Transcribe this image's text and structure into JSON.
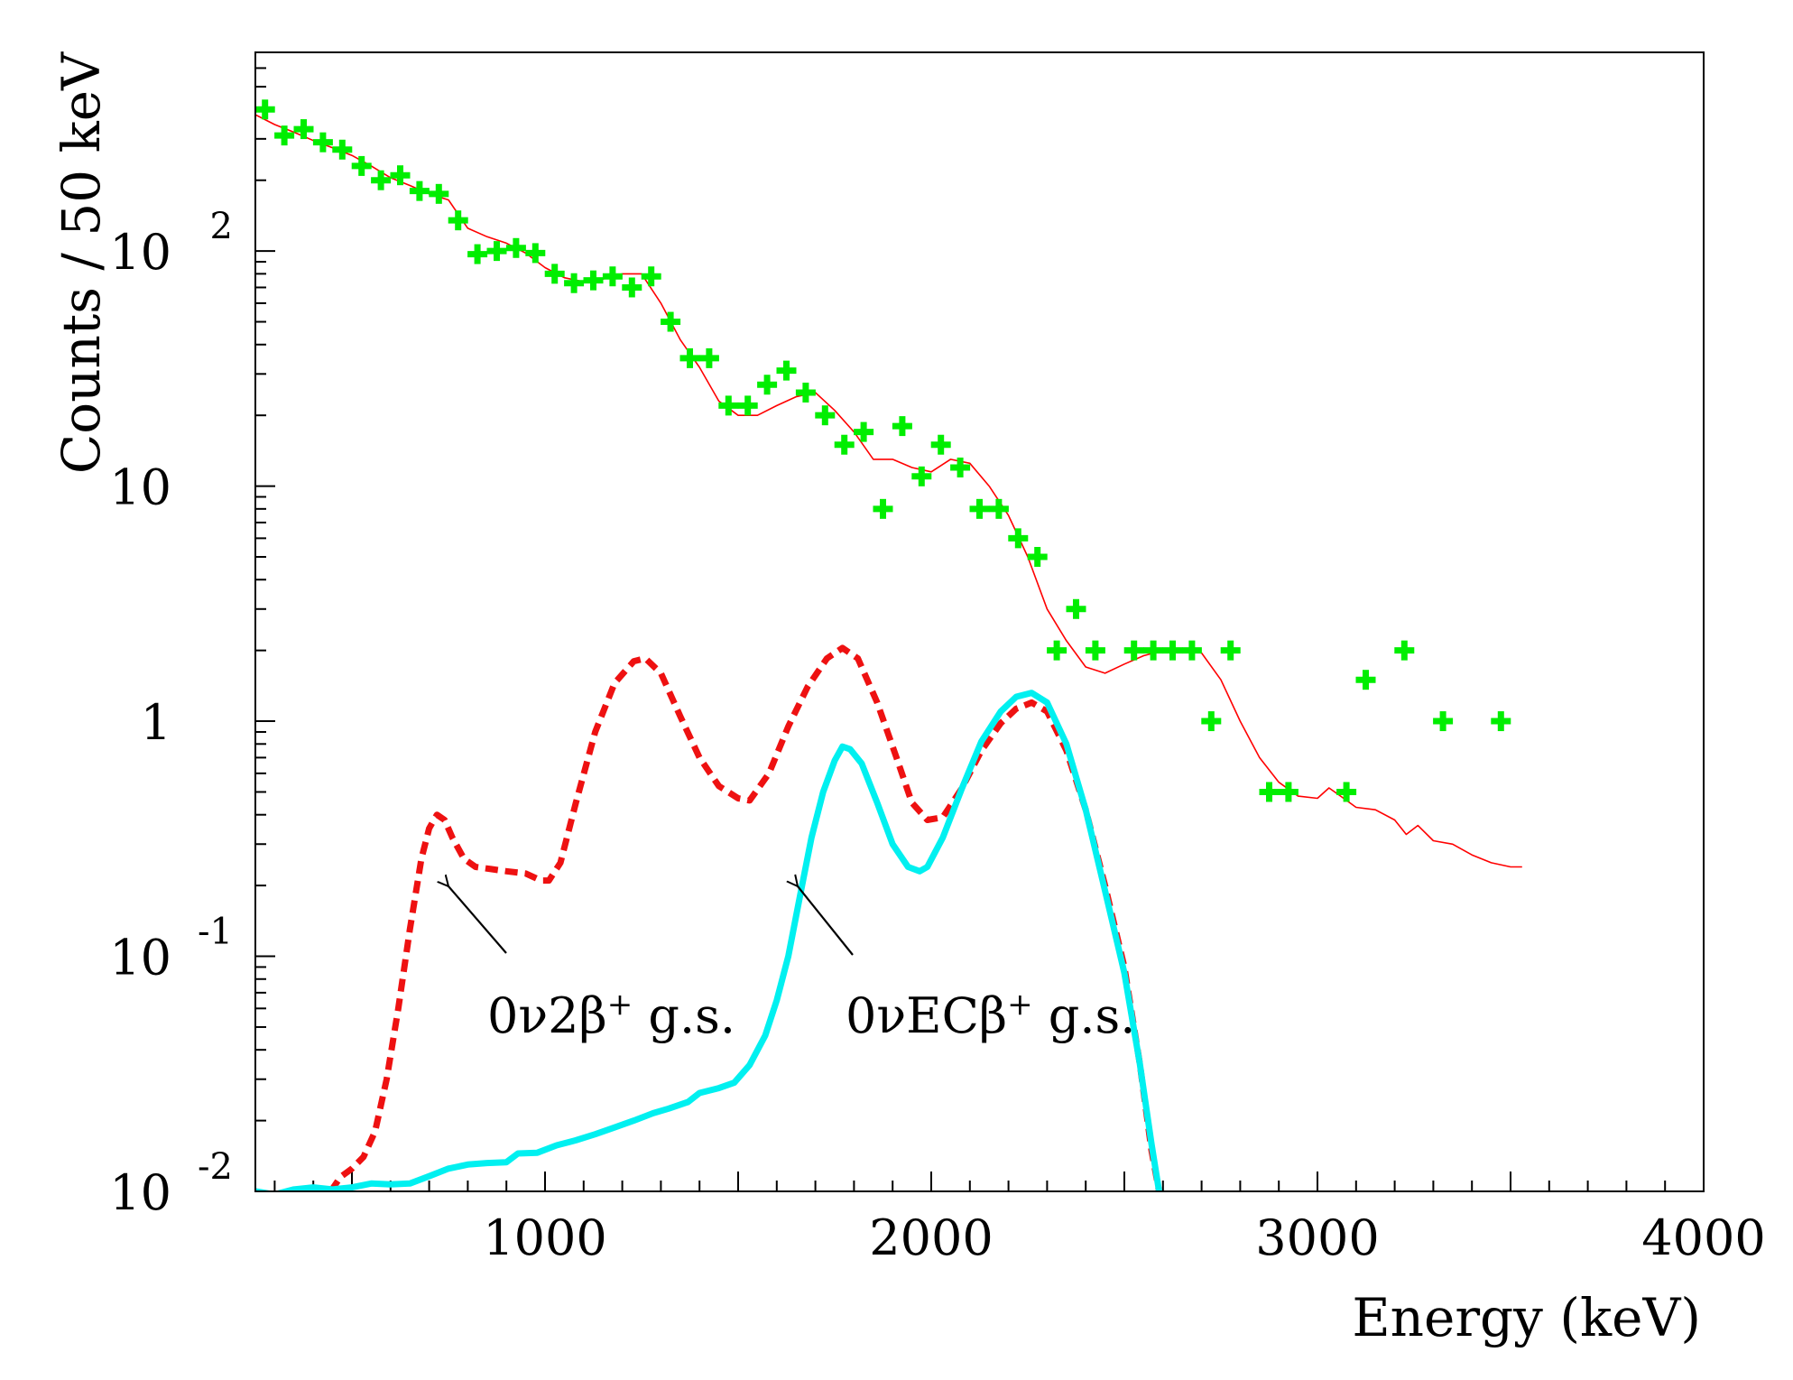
{
  "chart_data": {
    "type": "line",
    "title": "",
    "xlabel": "Energy (keV)",
    "ylabel": "Counts / 50 keV",
    "xlim": [
      250,
      4000
    ],
    "ylim": [
      0.01,
      700
    ],
    "yscale": "log",
    "grid": false,
    "x_tick_labels": [
      {
        "value": 1000,
        "label": "1000"
      },
      {
        "value": 2000,
        "label": "2000"
      },
      {
        "value": 3000,
        "label": "3000"
      },
      {
        "value": 4000,
        "label": "4000"
      }
    ],
    "y_tick_labels": [
      {
        "value": 0.01,
        "base": "10",
        "exp": "-2"
      },
      {
        "value": 0.1,
        "base": "10",
        "exp": "-1"
      },
      {
        "value": 1,
        "base": "1",
        "exp": ""
      },
      {
        "value": 10,
        "base": "10",
        "exp": ""
      },
      {
        "value": 100,
        "base": "10",
        "exp": "2"
      }
    ],
    "series": [
      {
        "kind": "markers",
        "marker": "plus",
        "color": "#00ee00",
        "points": [
          [
            275,
            400
          ],
          [
            325,
            310
          ],
          [
            375,
            330
          ],
          [
            425,
            290
          ],
          [
            475,
            270
          ],
          [
            525,
            230
          ],
          [
            575,
            200
          ],
          [
            625,
            210
          ],
          [
            675,
            180
          ],
          [
            725,
            175
          ],
          [
            775,
            135
          ],
          [
            825,
            97
          ],
          [
            875,
            100
          ],
          [
            925,
            103
          ],
          [
            975,
            98
          ],
          [
            1025,
            80
          ],
          [
            1075,
            73
          ],
          [
            1125,
            75
          ],
          [
            1175,
            78
          ],
          [
            1225,
            70
          ],
          [
            1275,
            78
          ],
          [
            1325,
            50
          ],
          [
            1375,
            35
          ],
          [
            1425,
            35
          ],
          [
            1475,
            22
          ],
          [
            1525,
            22
          ],
          [
            1575,
            27
          ],
          [
            1625,
            31
          ],
          [
            1675,
            25
          ],
          [
            1725,
            20
          ],
          [
            1775,
            15
          ],
          [
            1825,
            17
          ],
          [
            1875,
            8
          ],
          [
            1925,
            18
          ],
          [
            1975,
            11
          ],
          [
            2025,
            15
          ],
          [
            2075,
            12
          ],
          [
            2125,
            8
          ],
          [
            2175,
            8
          ],
          [
            2225,
            6
          ],
          [
            2275,
            5
          ],
          [
            2325,
            2
          ],
          [
            2375,
            3
          ],
          [
            2425,
            2
          ],
          [
            2525,
            2
          ],
          [
            2575,
            2
          ],
          [
            2625,
            2
          ],
          [
            2675,
            2
          ],
          [
            2725,
            1
          ],
          [
            2775,
            2
          ],
          [
            2875,
            0.5
          ],
          [
            2925,
            0.5
          ],
          [
            3075,
            0.5
          ],
          [
            3125,
            1.5
          ],
          [
            3225,
            2
          ],
          [
            3325,
            1
          ],
          [
            3475,
            1
          ]
        ]
      },
      {
        "kind": "line",
        "style": "solid-thin",
        "color": "#ff0000",
        "points": [
          [
            250,
            380
          ],
          [
            300,
            345
          ],
          [
            350,
            320
          ],
          [
            400,
            295
          ],
          [
            450,
            275
          ],
          [
            500,
            255
          ],
          [
            550,
            230
          ],
          [
            600,
            205
          ],
          [
            650,
            190
          ],
          [
            700,
            175
          ],
          [
            750,
            165
          ],
          [
            800,
            125
          ],
          [
            850,
            115
          ],
          [
            900,
            108
          ],
          [
            950,
            98
          ],
          [
            1000,
            85
          ],
          [
            1050,
            77
          ],
          [
            1100,
            74
          ],
          [
            1150,
            76
          ],
          [
            1200,
            80
          ],
          [
            1250,
            80
          ],
          [
            1300,
            60
          ],
          [
            1350,
            42
          ],
          [
            1400,
            32
          ],
          [
            1450,
            23
          ],
          [
            1500,
            20
          ],
          [
            1550,
            20
          ],
          [
            1600,
            22
          ],
          [
            1650,
            24
          ],
          [
            1700,
            25
          ],
          [
            1750,
            21
          ],
          [
            1800,
            17
          ],
          [
            1850,
            13
          ],
          [
            1900,
            13
          ],
          [
            1950,
            12
          ],
          [
            2000,
            11.5
          ],
          [
            2050,
            13
          ],
          [
            2100,
            12.5
          ],
          [
            2150,
            10
          ],
          [
            2200,
            7.5
          ],
          [
            2250,
            5
          ],
          [
            2300,
            3
          ],
          [
            2350,
            2.2
          ],
          [
            2400,
            1.7
          ],
          [
            2450,
            1.6
          ],
          [
            2500,
            1.75
          ],
          [
            2550,
            1.9
          ],
          [
            2600,
            2
          ],
          [
            2650,
            2
          ],
          [
            2700,
            1.95
          ],
          [
            2750,
            1.5
          ],
          [
            2800,
            1.0
          ],
          [
            2850,
            0.7
          ],
          [
            2900,
            0.55
          ],
          [
            2950,
            0.48
          ],
          [
            3000,
            0.47
          ],
          [
            3030,
            0.52
          ],
          [
            3060,
            0.48
          ],
          [
            3100,
            0.43
          ],
          [
            3150,
            0.42
          ],
          [
            3200,
            0.38
          ],
          [
            3230,
            0.33
          ],
          [
            3260,
            0.36
          ],
          [
            3300,
            0.31
          ],
          [
            3350,
            0.3
          ],
          [
            3400,
            0.27
          ],
          [
            3450,
            0.25
          ],
          [
            3500,
            0.24
          ],
          [
            3530,
            0.24
          ]
        ]
      },
      {
        "kind": "line",
        "name": "0ν2β⁺ g.s.",
        "style": "dashed-thick",
        "color": "#ee1111",
        "points": [
          [
            445,
            0.01
          ],
          [
            470,
            0.0115
          ],
          [
            500,
            0.0125
          ],
          [
            530,
            0.014
          ],
          [
            560,
            0.018
          ],
          [
            590,
            0.03
          ],
          [
            620,
            0.06
          ],
          [
            650,
            0.13
          ],
          [
            680,
            0.26
          ],
          [
            700,
            0.35
          ],
          [
            720,
            0.4
          ],
          [
            740,
            0.38
          ],
          [
            760,
            0.32
          ],
          [
            790,
            0.26
          ],
          [
            820,
            0.24
          ],
          [
            860,
            0.235
          ],
          [
            900,
            0.23
          ],
          [
            950,
            0.225
          ],
          [
            990,
            0.21
          ],
          [
            1010,
            0.21
          ],
          [
            1040,
            0.25
          ],
          [
            1080,
            0.45
          ],
          [
            1130,
            0.9
          ],
          [
            1180,
            1.45
          ],
          [
            1230,
            1.8
          ],
          [
            1260,
            1.85
          ],
          [
            1300,
            1.6
          ],
          [
            1350,
            1.05
          ],
          [
            1400,
            0.7
          ],
          [
            1450,
            0.53
          ],
          [
            1500,
            0.47
          ],
          [
            1530,
            0.46
          ],
          [
            1580,
            0.6
          ],
          [
            1630,
            0.95
          ],
          [
            1680,
            1.4
          ],
          [
            1730,
            1.85
          ],
          [
            1770,
            2.05
          ],
          [
            1810,
            1.85
          ],
          [
            1860,
            1.2
          ],
          [
            1910,
            0.7
          ],
          [
            1950,
            0.45
          ],
          [
            1990,
            0.38
          ],
          [
            2030,
            0.39
          ],
          [
            2080,
            0.52
          ],
          [
            2130,
            0.75
          ],
          [
            2180,
            0.98
          ],
          [
            2220,
            1.13
          ],
          [
            2260,
            1.2
          ],
          [
            2300,
            1.1
          ],
          [
            2350,
            0.75
          ],
          [
            2400,
            0.42
          ],
          [
            2450,
            0.2
          ],
          [
            2500,
            0.09
          ],
          [
            2540,
            0.035
          ],
          [
            2570,
            0.015
          ],
          [
            2590,
            0.01
          ]
        ]
      },
      {
        "kind": "line",
        "name": "0νECβ⁺ g.s.",
        "style": "solid-thick",
        "color": "#00f0f0",
        "points": [
          [
            250,
            0.01
          ],
          [
            300,
            0.0097
          ],
          [
            350,
            0.0102
          ],
          [
            400,
            0.0104
          ],
          [
            450,
            0.0102
          ],
          [
            500,
            0.0104
          ],
          [
            550,
            0.0108
          ],
          [
            600,
            0.0107
          ],
          [
            650,
            0.0108
          ],
          [
            700,
            0.0116
          ],
          [
            750,
            0.0125
          ],
          [
            800,
            0.013
          ],
          [
            850,
            0.0132
          ],
          [
            900,
            0.0133
          ],
          [
            930,
            0.0145
          ],
          [
            980,
            0.0146
          ],
          [
            1030,
            0.0157
          ],
          [
            1080,
            0.0165
          ],
          [
            1130,
            0.0175
          ],
          [
            1180,
            0.0187
          ],
          [
            1230,
            0.02
          ],
          [
            1280,
            0.0215
          ],
          [
            1320,
            0.0225
          ],
          [
            1370,
            0.024
          ],
          [
            1400,
            0.0262
          ],
          [
            1450,
            0.0275
          ],
          [
            1490,
            0.029
          ],
          [
            1530,
            0.0345
          ],
          [
            1570,
            0.046
          ],
          [
            1600,
            0.065
          ],
          [
            1630,
            0.1
          ],
          [
            1660,
            0.18
          ],
          [
            1690,
            0.32
          ],
          [
            1720,
            0.5
          ],
          [
            1750,
            0.68
          ],
          [
            1770,
            0.78
          ],
          [
            1790,
            0.76
          ],
          [
            1820,
            0.66
          ],
          [
            1860,
            0.45
          ],
          [
            1900,
            0.3
          ],
          [
            1940,
            0.24
          ],
          [
            1970,
            0.23
          ],
          [
            1990,
            0.24
          ],
          [
            2030,
            0.32
          ],
          [
            2080,
            0.52
          ],
          [
            2130,
            0.82
          ],
          [
            2180,
            1.1
          ],
          [
            2220,
            1.27
          ],
          [
            2260,
            1.32
          ],
          [
            2300,
            1.2
          ],
          [
            2350,
            0.8
          ],
          [
            2400,
            0.42
          ],
          [
            2450,
            0.19
          ],
          [
            2500,
            0.085
          ],
          [
            2540,
            0.035
          ],
          [
            2570,
            0.016
          ],
          [
            2590,
            0.01
          ]
        ]
      }
    ],
    "annotations": [
      {
        "name": "0v2b",
        "prefix": "0ν2β",
        "sup": "+",
        "suffix": " g.s.",
        "anchor": [
          1740,
          0.09
        ],
        "arrow_to": [
          750,
          0.27
        ],
        "arrow_from": [
          1790,
          0.13
        ]
      },
      {
        "name": "0vecb",
        "prefix": "0νECβ",
        "sup": "+",
        "suffix": " g.s.",
        "anchor": [
          2100,
          0.09
        ],
        "arrow_to": [
          1650,
          0.27
        ],
        "arrow_from": [
          1810,
          0.13
        ]
      }
    ]
  }
}
